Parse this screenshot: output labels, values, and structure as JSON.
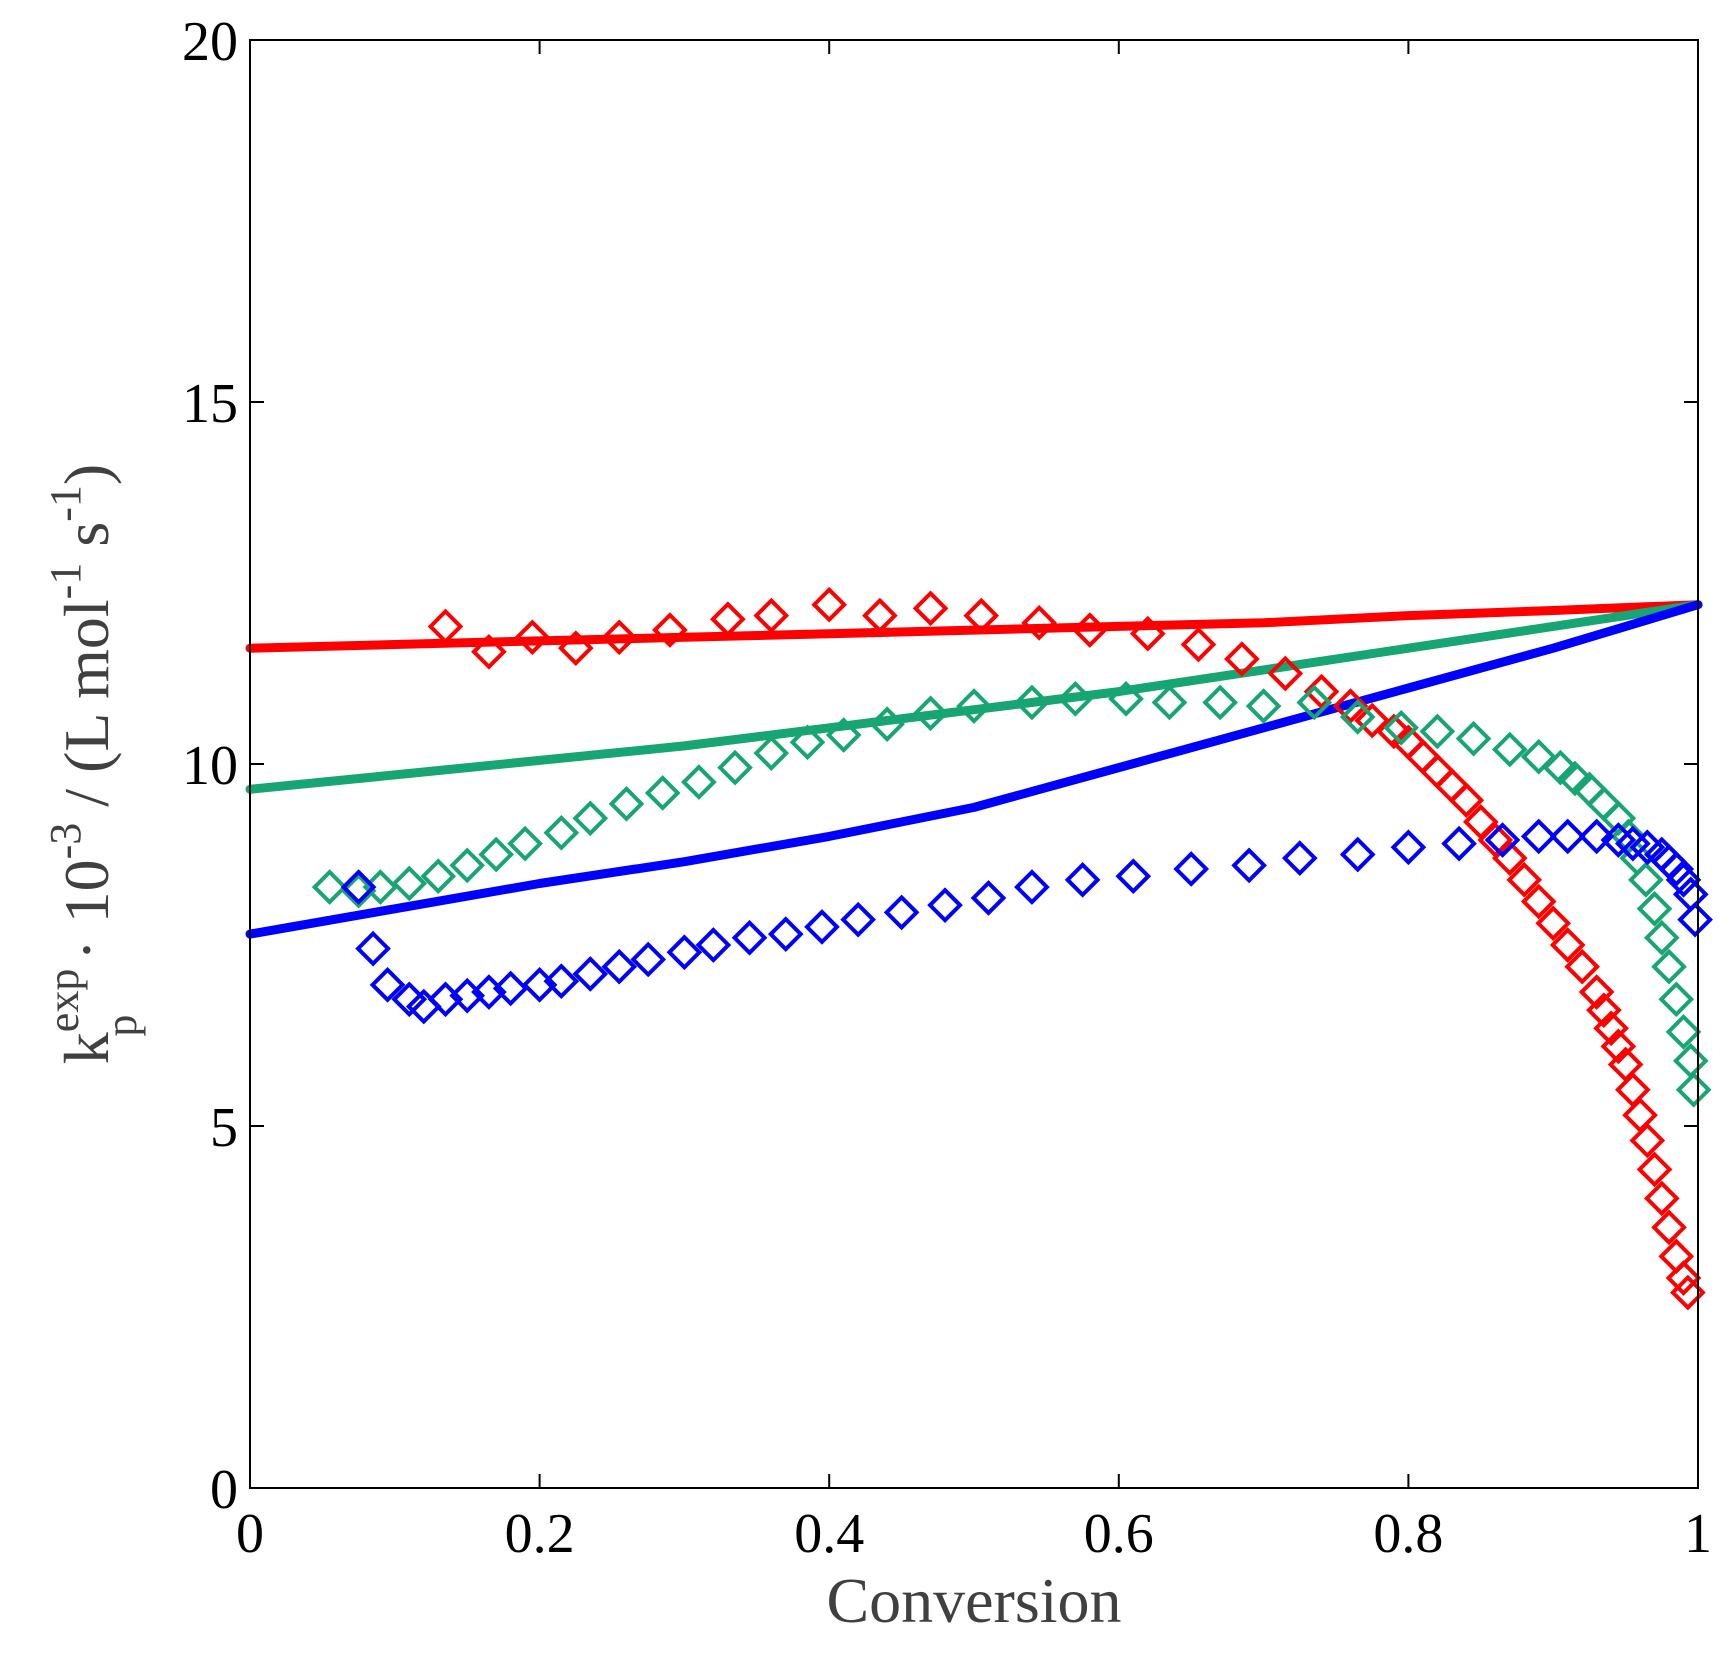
{
  "chart_data": {
    "type": "scatter",
    "xlabel": "Conversion",
    "ylabel": {
      "base": "k",
      "superscript": "exp",
      "subscript": "p",
      "middle": " · 10",
      "exponent": "-3",
      "unit_open": " / (L mol",
      "unit_exp1": "-1",
      "unit_mid": " s",
      "unit_exp2": "-1",
      "unit_close": ")"
    },
    "xlim": [
      0,
      1
    ],
    "ylim": [
      0,
      20
    ],
    "xticks": [
      0,
      0.2,
      0.4,
      0.6,
      0.8,
      1
    ],
    "xtick_labels": [
      "0",
      "0.2",
      "0.4",
      "0.6",
      "0.8",
      "1"
    ],
    "yticks": [
      0,
      5,
      10,
      15,
      20
    ],
    "ytick_labels": [
      "0",
      "5",
      "10",
      "15",
      "20"
    ],
    "grid": false,
    "legend": "none",
    "series": [
      {
        "name": "red-model",
        "kind": "line",
        "color": "#ff0000",
        "x": [
          0,
          0.1,
          0.2,
          0.3,
          0.4,
          0.5,
          0.6,
          0.7,
          0.8,
          0.9,
          1.0
        ],
        "y": [
          11.6,
          11.65,
          11.7,
          11.75,
          11.8,
          11.85,
          11.9,
          11.95,
          12.05,
          12.12,
          12.2
        ]
      },
      {
        "name": "green-model",
        "kind": "line",
        "color": "#17a673",
        "x": [
          0,
          0.1,
          0.2,
          0.3,
          0.4,
          0.5,
          0.6,
          0.7,
          0.8,
          0.9,
          1.0
        ],
        "y": [
          9.65,
          9.85,
          10.05,
          10.25,
          10.5,
          10.75,
          11.0,
          11.3,
          11.6,
          11.9,
          12.2
        ]
      },
      {
        "name": "blue-model",
        "kind": "line",
        "color": "#0000ff",
        "x": [
          0,
          0.1,
          0.2,
          0.3,
          0.4,
          0.5,
          0.6,
          0.7,
          0.8,
          0.9,
          1.0
        ],
        "y": [
          7.65,
          8.0,
          8.35,
          8.65,
          9.0,
          9.4,
          9.95,
          10.5,
          11.05,
          11.6,
          12.2
        ]
      },
      {
        "name": "red-data",
        "kind": "marker",
        "color": "#ff0000",
        "x": [
          0.135,
          0.165,
          0.195,
          0.225,
          0.255,
          0.29,
          0.33,
          0.36,
          0.4,
          0.435,
          0.47,
          0.505,
          0.545,
          0.58,
          0.62,
          0.655,
          0.685,
          0.715,
          0.74,
          0.76,
          0.775,
          0.79,
          0.8,
          0.81,
          0.82,
          0.83,
          0.84,
          0.85,
          0.86,
          0.87,
          0.88,
          0.89,
          0.9,
          0.91,
          0.92,
          0.93,
          0.935,
          0.94,
          0.945,
          0.95,
          0.955,
          0.96,
          0.965,
          0.97,
          0.975,
          0.98,
          0.985,
          0.99,
          0.993
        ],
        "y": [
          11.9,
          11.55,
          11.75,
          11.6,
          11.75,
          11.85,
          12.0,
          12.05,
          12.2,
          12.05,
          12.15,
          12.05,
          11.95,
          11.85,
          11.8,
          11.65,
          11.45,
          11.25,
          11.0,
          10.8,
          10.6,
          10.45,
          10.3,
          10.1,
          9.9,
          9.7,
          9.5,
          9.2,
          8.95,
          8.7,
          8.4,
          8.1,
          7.8,
          7.5,
          7.2,
          6.85,
          6.6,
          6.35,
          6.1,
          5.85,
          5.5,
          5.15,
          4.8,
          4.4,
          4.0,
          3.6,
          3.2,
          2.9,
          2.7
        ]
      },
      {
        "name": "green-data",
        "kind": "marker",
        "color": "#17a673",
        "x": [
          0.055,
          0.075,
          0.09,
          0.11,
          0.13,
          0.15,
          0.17,
          0.19,
          0.215,
          0.235,
          0.26,
          0.285,
          0.31,
          0.335,
          0.36,
          0.385,
          0.41,
          0.44,
          0.47,
          0.5,
          0.54,
          0.57,
          0.605,
          0.635,
          0.67,
          0.7,
          0.735,
          0.765,
          0.795,
          0.82,
          0.845,
          0.87,
          0.89,
          0.905,
          0.915,
          0.925,
          0.935,
          0.945,
          0.952,
          0.958,
          0.964,
          0.97,
          0.975,
          0.98,
          0.985,
          0.99,
          0.995,
          0.997
        ],
        "y": [
          8.3,
          8.25,
          8.3,
          8.35,
          8.45,
          8.6,
          8.75,
          8.9,
          9.05,
          9.25,
          9.45,
          9.6,
          9.75,
          9.95,
          10.15,
          10.3,
          10.4,
          10.55,
          10.7,
          10.8,
          10.85,
          10.9,
          10.9,
          10.85,
          10.85,
          10.8,
          10.85,
          10.65,
          10.5,
          10.45,
          10.35,
          10.2,
          10.1,
          9.95,
          9.8,
          9.65,
          9.45,
          9.25,
          9.0,
          8.7,
          8.4,
          8.0,
          7.6,
          7.2,
          6.75,
          6.3,
          5.9,
          5.5
        ]
      },
      {
        "name": "blue-data",
        "kind": "marker",
        "color": "#0000ff",
        "x": [
          0.075,
          0.085,
          0.095,
          0.11,
          0.12,
          0.135,
          0.15,
          0.165,
          0.18,
          0.2,
          0.215,
          0.235,
          0.255,
          0.275,
          0.3,
          0.32,
          0.345,
          0.37,
          0.395,
          0.42,
          0.45,
          0.48,
          0.51,
          0.54,
          0.575,
          0.61,
          0.65,
          0.69,
          0.725,
          0.765,
          0.8,
          0.835,
          0.865,
          0.89,
          0.91,
          0.93,
          0.945,
          0.955,
          0.965,
          0.975,
          0.98,
          0.985,
          0.99,
          0.995,
          0.998
        ],
        "y": [
          8.3,
          7.45,
          6.95,
          6.75,
          6.65,
          6.75,
          6.8,
          6.85,
          6.9,
          6.95,
          7.0,
          7.1,
          7.2,
          7.3,
          7.4,
          7.5,
          7.6,
          7.65,
          7.75,
          7.85,
          7.95,
          8.05,
          8.15,
          8.3,
          8.4,
          8.45,
          8.55,
          8.6,
          8.7,
          8.75,
          8.85,
          8.9,
          8.95,
          9.0,
          9.0,
          9.0,
          8.95,
          8.9,
          8.85,
          8.75,
          8.65,
          8.55,
          8.4,
          8.2,
          7.85
        ]
      }
    ]
  }
}
